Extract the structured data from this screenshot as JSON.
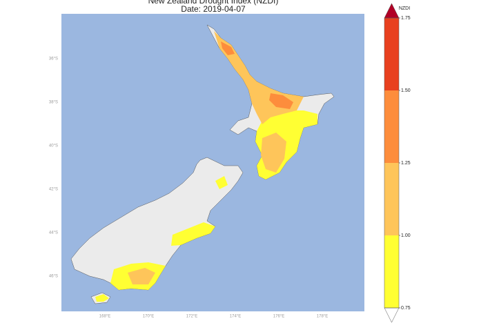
{
  "title": "New Zealand Drought Index (NZDI)",
  "subtitle": "Date: 2019-04-07",
  "map": {
    "lat_labels": [
      "36°S",
      "38°S",
      "40°S",
      "42°S",
      "44°S",
      "46°S"
    ],
    "lon_labels": [
      "168°E",
      "170°E",
      "172°E",
      "174°E",
      "176°E",
      "178°E"
    ]
  },
  "colorbar": {
    "label": "NZDI",
    "ticks": [
      {
        "value": 0.75,
        "label": "0.75"
      },
      {
        "value": 1.0,
        "label": "1.00"
      },
      {
        "value": 1.25,
        "label": "1.25"
      },
      {
        "value": 1.5,
        "label": "1.50"
      },
      {
        "value": 1.75,
        "label": "1.75"
      }
    ],
    "colors": [
      "#ffff33",
      "#fec55a",
      "#fd8d3c",
      "#e8401f"
    ],
    "over_color": "#b10026",
    "under_color": "#ffffff"
  }
}
